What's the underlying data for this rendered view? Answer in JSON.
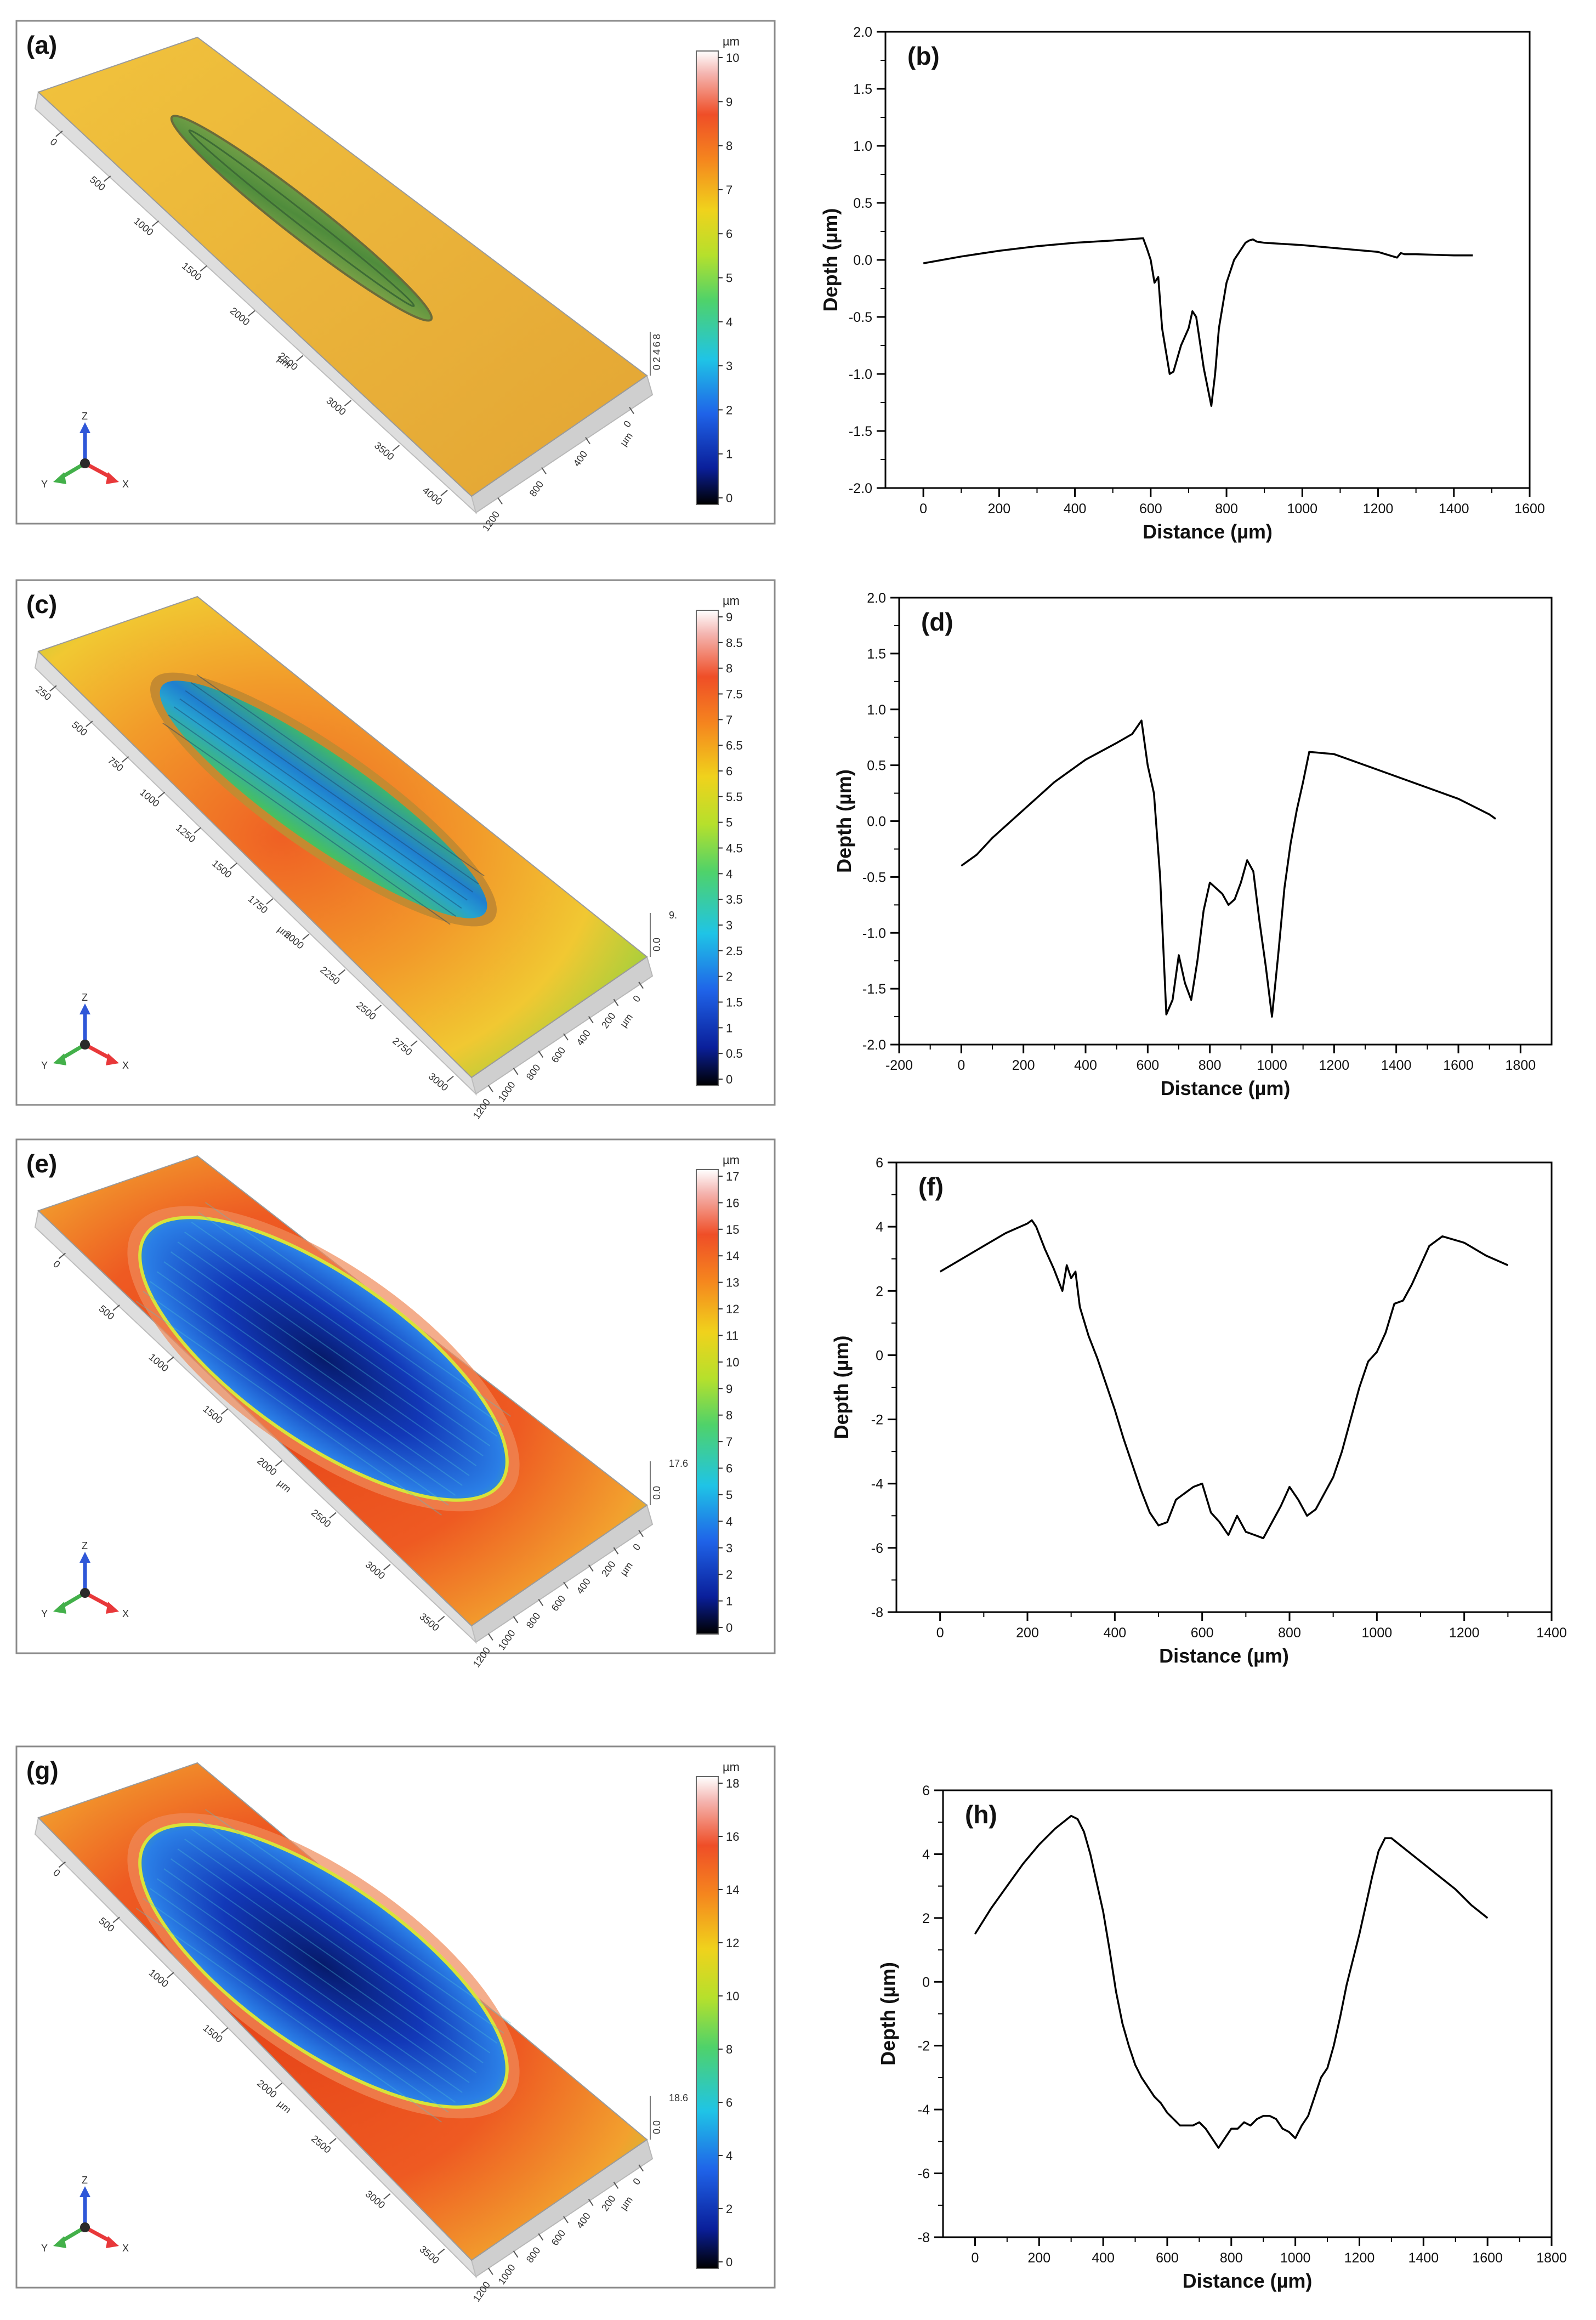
{
  "colors": {
    "surface_flat": "#e9b73c",
    "surface_warm": "#ef6a2a",
    "surface_green": "#7fcf3b",
    "wear_blue": "#1d4fd6",
    "wear_deep": "#0a1f78",
    "axis_x": "#e8383a",
    "axis_y": "#43b04a",
    "axis_z": "#2f57d8"
  },
  "panels": [
    {
      "label": "(a)",
      "unit": "µm",
      "max_text": "",
      "colorbar_ticks": [
        "10",
        "9",
        "8",
        "7",
        "6",
        "5",
        "4",
        "3",
        "2",
        "1",
        "0"
      ],
      "axis_labels": [
        "Z",
        "X",
        "Y"
      ],
      "x_ticks": [
        "0",
        "500",
        "1000",
        "1500",
        "2000",
        "2500",
        "3000",
        "3500",
        "4000"
      ],
      "x_title": "µm",
      "y_ticks": [
        "0",
        "400",
        "800",
        "1200"
      ],
      "y_title": "µm",
      "z_ticks": [
        "0",
        "2",
        "4",
        "6",
        "8"
      ],
      "wear": "narrow"
    },
    {
      "label": "(c)",
      "unit": "µm",
      "max_text": "9.",
      "colorbar_ticks": [
        "9",
        "8.5",
        "8",
        "7.5",
        "7",
        "6.5",
        "6",
        "5.5",
        "5",
        "4.5",
        "4",
        "3.5",
        "3",
        "2.5",
        "2",
        "1.5",
        "1",
        "0.5",
        "0"
      ],
      "axis_labels": [
        "Z",
        "X",
        "Y"
      ],
      "x_ticks": [
        "250",
        "500",
        "750",
        "1000",
        "1250",
        "1500",
        "1750",
        "2000",
        "2250",
        "2500",
        "2750",
        "3000"
      ],
      "x_title": "µm",
      "y_ticks": [
        "0",
        "200",
        "400",
        "600",
        "800",
        "1000",
        "1200"
      ],
      "y_title": "µm",
      "z_ticks": [
        "0.0"
      ],
      "wear": "medium"
    },
    {
      "label": "(e)",
      "unit": "µm",
      "max_text": "17.6",
      "colorbar_ticks": [
        "17",
        "16",
        "15",
        "14",
        "13",
        "12",
        "11",
        "10",
        "9",
        "8",
        "7",
        "6",
        "5",
        "4",
        "3",
        "2",
        "1",
        "0"
      ],
      "axis_labels": [
        "Z",
        "X",
        "Y"
      ],
      "x_ticks": [
        "0",
        "500",
        "1000",
        "1500",
        "2000",
        "2500",
        "3000",
        "3500"
      ],
      "x_title": "µm",
      "y_ticks": [
        "0",
        "200",
        "400",
        "600",
        "800",
        "1000",
        "1200"
      ],
      "y_title": "µm",
      "z_ticks": [
        "0.0"
      ],
      "wear": "wide"
    },
    {
      "label": "(g)",
      "unit": "µm",
      "max_text": "18.6",
      "colorbar_ticks": [
        "18",
        "16",
        "14",
        "12",
        "10",
        "8",
        "6",
        "4",
        "2",
        "0"
      ],
      "axis_labels": [
        "Z",
        "X",
        "Y"
      ],
      "x_ticks": [
        "0",
        "500",
        "1000",
        "1500",
        "2000",
        "2500",
        "3000",
        "3500"
      ],
      "x_title": "µm",
      "y_ticks": [
        "0",
        "200",
        "400",
        "600",
        "800",
        "1000",
        "1200"
      ],
      "y_title": "µm",
      "z_ticks": [
        "0.0"
      ],
      "wear": "wide"
    }
  ],
  "chart_data": [
    {
      "label": "(b)",
      "type": "line",
      "xlabel": "Distance (µm)",
      "ylabel": "Depth (µm)",
      "xlim": [
        -100,
        1600
      ],
      "ylim": [
        -2.0,
        2.0
      ],
      "xticks": [
        0,
        200,
        400,
        600,
        800,
        1000,
        1200,
        1400,
        1600
      ],
      "yticks": [
        2.0,
        1.5,
        1.0,
        0.5,
        0.0,
        -0.5,
        -1.0,
        -1.5,
        -2.0
      ],
      "ytick_labels": [
        "2.0",
        "1.5",
        "1.0",
        "0.5",
        "0.0",
        "-0.5",
        "-1.0",
        "-1.5",
        "-2.0"
      ],
      "x": [
        0,
        50,
        100,
        200,
        300,
        400,
        500,
        580,
        590,
        600,
        610,
        620,
        630,
        640,
        650,
        660,
        680,
        700,
        710,
        720,
        740,
        760,
        770,
        780,
        790,
        800,
        810,
        820,
        830,
        840,
        850,
        860,
        870,
        880,
        900,
        1000,
        1100,
        1200,
        1250,
        1260,
        1270,
        1300,
        1400,
        1450
      ],
      "y": [
        -0.03,
        0.0,
        0.03,
        0.08,
        0.12,
        0.15,
        0.17,
        0.19,
        0.1,
        0.0,
        -0.2,
        -0.15,
        -0.6,
        -0.8,
        -1.0,
        -0.98,
        -0.75,
        -0.6,
        -0.45,
        -0.5,
        -0.95,
        -1.28,
        -1.0,
        -0.6,
        -0.4,
        -0.2,
        -0.1,
        0.0,
        0.05,
        0.1,
        0.15,
        0.17,
        0.18,
        0.16,
        0.15,
        0.13,
        0.1,
        0.07,
        0.02,
        0.06,
        0.05,
        0.05,
        0.04,
        0.04
      ]
    },
    {
      "label": "(d)",
      "type": "line",
      "xlabel": "Distance (µm)",
      "ylabel": "Depth (µm)",
      "xlim": [
        -200,
        1900
      ],
      "ylim": [
        -2.0,
        2.0
      ],
      "xticks": [
        -200,
        0,
        200,
        400,
        600,
        800,
        1000,
        1200,
        1400,
        1600,
        1800
      ],
      "yticks": [
        2.0,
        1.5,
        1.0,
        0.5,
        0.0,
        -0.5,
        -1.0,
        -1.5,
        -2.0
      ],
      "ytick_labels": [
        "2.0",
        "1.5",
        "1.0",
        "0.5",
        "0.0",
        "-0.5",
        "-1.0",
        "-1.5",
        "-2.0"
      ],
      "x": [
        0,
        50,
        100,
        200,
        300,
        400,
        500,
        550,
        580,
        600,
        620,
        640,
        660,
        680,
        700,
        720,
        740,
        760,
        780,
        800,
        820,
        840,
        860,
        880,
        900,
        920,
        940,
        960,
        980,
        1000,
        1020,
        1040,
        1060,
        1080,
        1100,
        1120,
        1200,
        1300,
        1400,
        1500,
        1600,
        1700,
        1720
      ],
      "y": [
        -0.4,
        -0.3,
        -0.15,
        0.1,
        0.35,
        0.55,
        0.7,
        0.78,
        0.9,
        0.5,
        0.25,
        -0.5,
        -1.73,
        -1.6,
        -1.2,
        -1.45,
        -1.6,
        -1.25,
        -0.8,
        -0.55,
        -0.6,
        -0.65,
        -0.75,
        -0.7,
        -0.55,
        -0.35,
        -0.45,
        -0.9,
        -1.3,
        -1.75,
        -1.2,
        -0.6,
        -0.2,
        0.1,
        0.35,
        0.62,
        0.6,
        0.5,
        0.4,
        0.3,
        0.2,
        0.06,
        0.02
      ]
    },
    {
      "label": "(f)",
      "type": "line",
      "xlabel": "Distance (µm)",
      "ylabel": "Depth (µm)",
      "xlim": [
        -100,
        1400
      ],
      "ylim": [
        -8,
        6
      ],
      "xticks": [
        0,
        200,
        400,
        600,
        800,
        1000,
        1200,
        1400
      ],
      "yticks": [
        6,
        4,
        2,
        0,
        -2,
        -4,
        -6,
        -8
      ],
      "ytick_labels": [
        "6",
        "4",
        "2",
        "0",
        "-2",
        "-4",
        "-6",
        "-8"
      ],
      "x": [
        0,
        50,
        100,
        150,
        200,
        210,
        220,
        240,
        260,
        280,
        290,
        300,
        310,
        320,
        340,
        360,
        380,
        400,
        420,
        440,
        460,
        480,
        500,
        520,
        540,
        560,
        580,
        600,
        620,
        640,
        660,
        680,
        700,
        720,
        740,
        760,
        780,
        800,
        820,
        840,
        860,
        880,
        900,
        920,
        940,
        960,
        980,
        1000,
        1020,
        1040,
        1060,
        1080,
        1100,
        1120,
        1150,
        1200,
        1250,
        1300
      ],
      "y": [
        2.6,
        3.0,
        3.4,
        3.8,
        4.1,
        4.2,
        4.0,
        3.3,
        2.7,
        2.0,
        2.8,
        2.4,
        2.6,
        1.5,
        0.6,
        -0.1,
        -0.9,
        -1.7,
        -2.6,
        -3.4,
        -4.2,
        -4.9,
        -5.3,
        -5.2,
        -4.5,
        -4.3,
        -4.1,
        -4.0,
        -4.9,
        -5.2,
        -5.6,
        -5.0,
        -5.5,
        -5.6,
        -5.7,
        -5.2,
        -4.7,
        -4.1,
        -4.5,
        -5.0,
        -4.8,
        -4.3,
        -3.8,
        -3.0,
        -2.0,
        -1.0,
        -0.2,
        0.1,
        0.7,
        1.6,
        1.7,
        2.2,
        2.8,
        3.4,
        3.7,
        3.5,
        3.1,
        2.8
      ]
    },
    {
      "label": "(h)",
      "type": "line",
      "xlabel": "Distance (µm)",
      "ylabel": "Depth (µm)",
      "xlim": [
        -100,
        1800
      ],
      "ylim": [
        -8,
        6
      ],
      "xticks": [
        0,
        200,
        400,
        600,
        800,
        1000,
        1200,
        1400,
        1600,
        1800
      ],
      "yticks": [
        6,
        4,
        2,
        0,
        -2,
        -4,
        -6,
        -8
      ],
      "ytick_labels": [
        "6",
        "4",
        "2",
        "0",
        "-2",
        "-4",
        "-6",
        "-8"
      ],
      "x": [
        0,
        50,
        100,
        150,
        200,
        250,
        300,
        320,
        340,
        360,
        380,
        400,
        420,
        440,
        460,
        480,
        500,
        520,
        540,
        560,
        580,
        600,
        620,
        640,
        660,
        680,
        700,
        720,
        740,
        760,
        780,
        800,
        820,
        840,
        860,
        880,
        900,
        920,
        940,
        960,
        980,
        1000,
        1020,
        1040,
        1060,
        1080,
        1100,
        1120,
        1140,
        1160,
        1180,
        1200,
        1220,
        1240,
        1260,
        1280,
        1300,
        1350,
        1400,
        1450,
        1500,
        1550,
        1600
      ],
      "y": [
        1.5,
        2.3,
        3.0,
        3.7,
        4.3,
        4.8,
        5.2,
        5.1,
        4.7,
        4.0,
        3.1,
        2.2,
        1.0,
        -0.3,
        -1.3,
        -2.0,
        -2.6,
        -3.0,
        -3.3,
        -3.6,
        -3.8,
        -4.1,
        -4.3,
        -4.5,
        -4.5,
        -4.5,
        -4.4,
        -4.6,
        -4.9,
        -5.2,
        -4.9,
        -4.6,
        -4.6,
        -4.4,
        -4.5,
        -4.3,
        -4.2,
        -4.2,
        -4.3,
        -4.6,
        -4.7,
        -4.9,
        -4.5,
        -4.2,
        -3.6,
        -3.0,
        -2.7,
        -2.0,
        -1.1,
        -0.1,
        0.7,
        1.5,
        2.4,
        3.3,
        4.1,
        4.5,
        4.5,
        4.1,
        3.7,
        3.3,
        2.9,
        2.4,
        2.0
      ]
    }
  ]
}
